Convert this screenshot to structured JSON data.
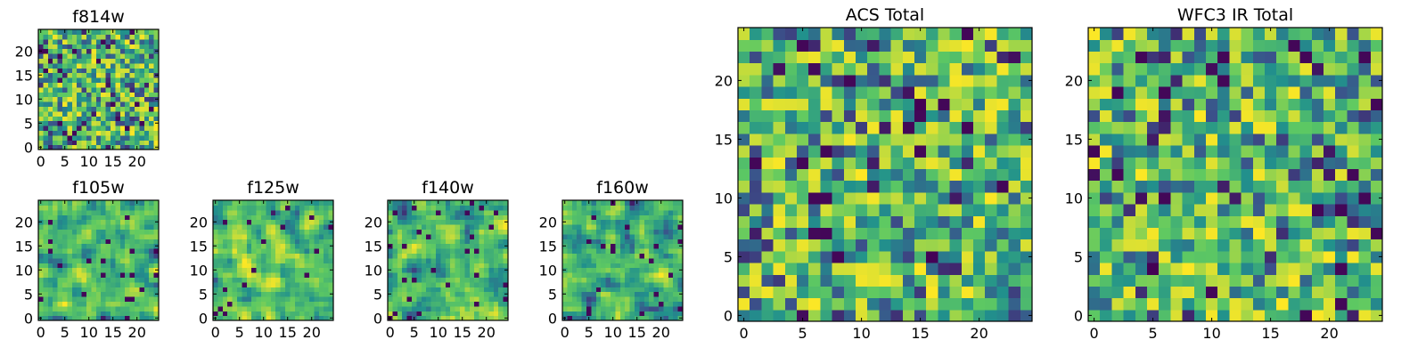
{
  "chart_data": [
    {
      "id": "f814w",
      "type": "heatmap",
      "title": "f814w",
      "grid_size": 25,
      "seed": 11,
      "smooth": 0,
      "xticks": [
        "0",
        "5",
        "10",
        "15",
        "20"
      ],
      "yticks": [
        "0",
        "5",
        "10",
        "15",
        "20"
      ],
      "xlim": [
        0,
        24
      ],
      "ylim": [
        0,
        24
      ],
      "colormap": "viridis"
    },
    {
      "id": "f105w",
      "type": "heatmap",
      "title": "f105w",
      "grid_size": 25,
      "seed": 23,
      "smooth": 1,
      "xticks": [
        "0",
        "5",
        "10",
        "15",
        "20"
      ],
      "yticks": [
        "0",
        "5",
        "10",
        "15",
        "20"
      ],
      "xlim": [
        0,
        24
      ],
      "ylim": [
        0,
        24
      ],
      "colormap": "viridis"
    },
    {
      "id": "f125w",
      "type": "heatmap",
      "title": "f125w",
      "grid_size": 25,
      "seed": 37,
      "smooth": 1,
      "xticks": [
        "0",
        "5",
        "10",
        "15",
        "20"
      ],
      "yticks": [
        "0",
        "5",
        "10",
        "15",
        "20"
      ],
      "xlim": [
        0,
        24
      ],
      "ylim": [
        0,
        24
      ],
      "colormap": "viridis"
    },
    {
      "id": "f140w",
      "type": "heatmap",
      "title": "f140w",
      "grid_size": 25,
      "seed": 41,
      "smooth": 1,
      "xticks": [
        "0",
        "5",
        "10",
        "15",
        "20"
      ],
      "yticks": [
        "0",
        "5",
        "10",
        "15",
        "20"
      ],
      "xlim": [
        0,
        24
      ],
      "ylim": [
        0,
        24
      ],
      "colormap": "viridis"
    },
    {
      "id": "f160w",
      "type": "heatmap",
      "title": "f160w",
      "grid_size": 25,
      "seed": 53,
      "smooth": 1,
      "xticks": [
        "0",
        "5",
        "10",
        "15",
        "20"
      ],
      "yticks": [
        "0",
        "5",
        "10",
        "15",
        "20"
      ],
      "xlim": [
        0,
        24
      ],
      "ylim": [
        0,
        24
      ],
      "colormap": "viridis"
    },
    {
      "id": "acs_total",
      "type": "heatmap",
      "title": "ACS Total",
      "grid_size": 25,
      "seed": 67,
      "smooth": 0,
      "xticks": [
        "0",
        "5",
        "10",
        "15",
        "20"
      ],
      "yticks": [
        "0",
        "5",
        "10",
        "15",
        "20"
      ],
      "xlim": [
        0,
        24
      ],
      "ylim": [
        0,
        24
      ],
      "colormap": "viridis"
    },
    {
      "id": "wfc3_ir_total",
      "type": "heatmap",
      "title": "WFC3 IR Total",
      "grid_size": 25,
      "seed": 79,
      "smooth": 0,
      "xticks": [
        "0",
        "5",
        "10",
        "15",
        "20"
      ],
      "yticks": [
        "0",
        "5",
        "10",
        "15",
        "20"
      ],
      "xlim": [
        0,
        24
      ],
      "ylim": [
        0,
        24
      ],
      "colormap": "viridis"
    }
  ],
  "colors": {
    "viridis_stops": [
      "#440154",
      "#3b528b",
      "#21918c",
      "#5ec962",
      "#fde725"
    ]
  }
}
